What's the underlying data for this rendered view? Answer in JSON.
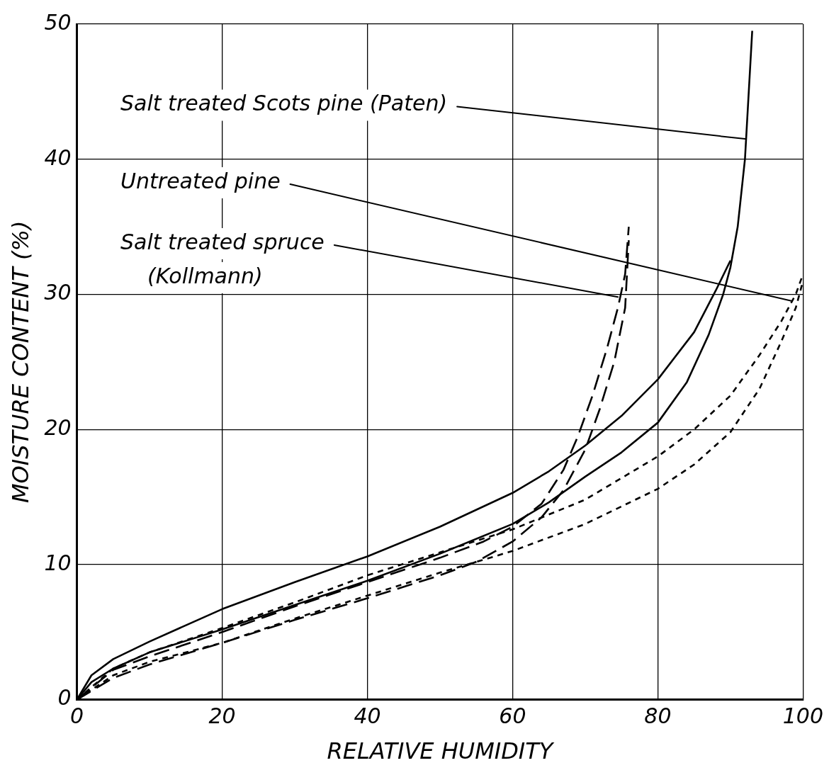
{
  "chart_data": {
    "type": "line",
    "xlabel": "RELATIVE HUMIDITY",
    "ylabel": "MOISTURE CONTENT (%)",
    "xlim": [
      0,
      100
    ],
    "xticks": [
      0,
      20,
      40,
      60,
      80,
      100
    ],
    "ylim": [
      0,
      50
    ],
    "yticks": [
      0,
      10,
      20,
      30,
      40,
      50
    ],
    "grid": true,
    "legend": false,
    "marker": "none",
    "series": [
      {
        "color": "#000000",
        "line_style": "solid",
        "x": [
          0,
          2,
          5,
          10,
          20,
          30,
          40,
          50,
          60,
          65,
          70,
          75,
          80,
          85,
          88,
          90
        ],
        "values": [
          0,
          1.8,
          3,
          4.3,
          6.7,
          8.7,
          10.6,
          12.8,
          15.3,
          16.9,
          18.8,
          21,
          23.7,
          27.2,
          30.3,
          32.5
        ]
      },
      {
        "color": "#000000",
        "line_style": "solid",
        "x": [
          0,
          2,
          5,
          10,
          20,
          30,
          40,
          50,
          60,
          65,
          70,
          75,
          80,
          84,
          87,
          89,
          90,
          91,
          92,
          93
        ],
        "values": [
          0,
          1.3,
          2.3,
          3.5,
          5.2,
          7,
          8.8,
          10.8,
          13,
          14.6,
          16.5,
          18.3,
          20.5,
          23.5,
          27,
          30,
          32,
          35,
          40,
          49.5
        ]
      },
      {
        "color": "#000000",
        "line_style": "dotted",
        "x": [
          0,
          5,
          10,
          20,
          30,
          40,
          50,
          60,
          70,
          80,
          85,
          90,
          94,
          97,
          99,
          100
        ],
        "values": [
          0,
          2.3,
          3.5,
          5.3,
          7.2,
          9.2,
          10.9,
          12.6,
          14.8,
          18,
          20,
          22.5,
          25.5,
          28,
          30,
          31.5
        ]
      },
      {
        "color": "#000000",
        "line_style": "dotted",
        "x": [
          0,
          5,
          10,
          20,
          30,
          40,
          50,
          60,
          70,
          80,
          85,
          90,
          94,
          97,
          99,
          100
        ],
        "values": [
          0,
          1.8,
          2.8,
          4.2,
          6,
          7.7,
          9.4,
          11,
          13,
          15.6,
          17.4,
          19.8,
          23,
          26.5,
          29,
          31
        ]
      },
      {
        "color": "#000000",
        "line_style": "dashed",
        "x": [
          0,
          5,
          10,
          20,
          30,
          40,
          50,
          56,
          60,
          64,
          67,
          69,
          71,
          73,
          74.5,
          75.5,
          76
        ],
        "values": [
          0,
          2.2,
          3.2,
          5,
          6.9,
          8.7,
          10.5,
          11.7,
          12.8,
          14.5,
          17,
          19.5,
          22.5,
          26,
          29,
          31.5,
          35
        ]
      },
      {
        "color": "#000000",
        "line_style": "dashed",
        "x": [
          0,
          5,
          10,
          20,
          30,
          40,
          50,
          55,
          60,
          64,
          67,
          70,
          72,
          74,
          75.5,
          76
        ],
        "values": [
          0,
          1.6,
          2.6,
          4.2,
          5.9,
          7.5,
          9.2,
          10.2,
          11.7,
          13.5,
          15.5,
          18.5,
          21.5,
          25,
          29,
          34
        ]
      }
    ],
    "annotations": [
      {
        "text": "Salt treated Scots pine (Paten)",
        "x": 92,
        "y": 41.5
      },
      {
        "text": "Untreated pine",
        "x": 98.5,
        "y": 29.5
      },
      {
        "text": "Salt treated spruce\n(Kollmann)",
        "x": 74.5,
        "y": 29.8
      }
    ]
  }
}
